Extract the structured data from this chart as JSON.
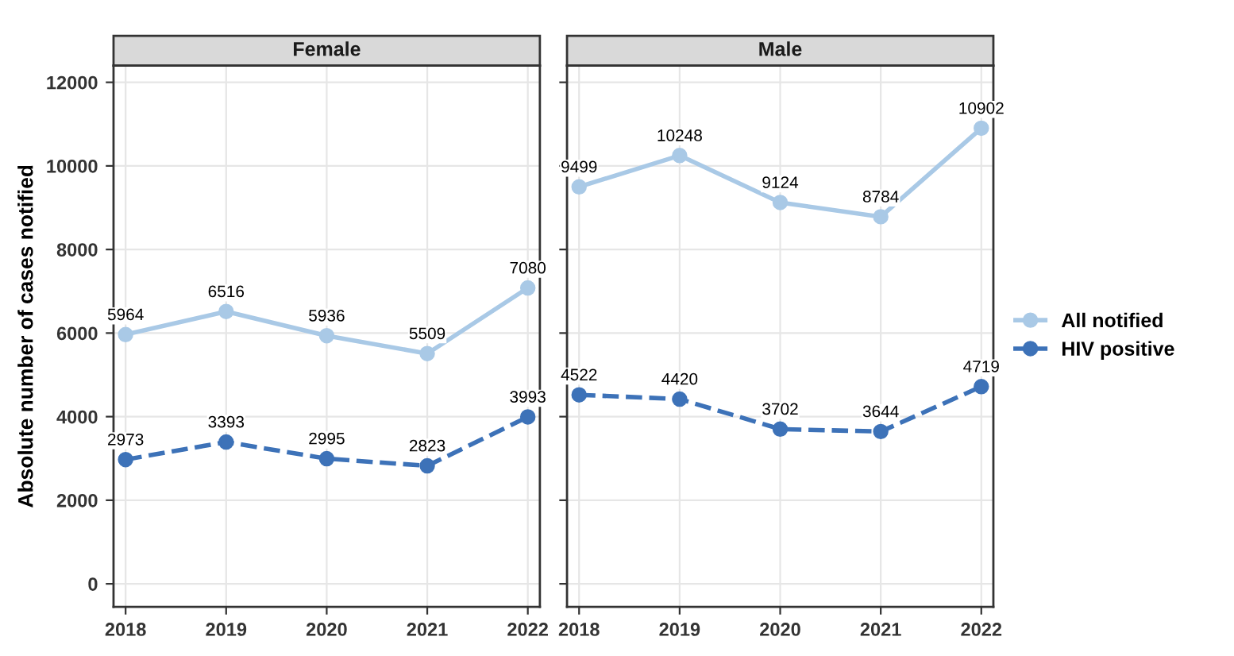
{
  "chart_data": [
    {
      "type": "line",
      "title": "Female",
      "ylabel": "Absolute number of cases notified",
      "categories": [
        "2018",
        "2019",
        "2020",
        "2021",
        "2022"
      ],
      "series": [
        {
          "name": "All notified",
          "color": "#a9c9e6",
          "values": [
            5964,
            6516,
            5936,
            5509,
            7080
          ],
          "line_style": "solid"
        },
        {
          "name": "HIV positive",
          "color": "#3d72b8",
          "values": [
            2973,
            3393,
            2995,
            2823,
            3993
          ],
          "line_style": "dashed"
        }
      ],
      "ylim": [
        -550,
        12400
      ],
      "yticks": [
        0,
        2000,
        4000,
        6000,
        8000,
        10000,
        12000
      ],
      "grid": true,
      "marker": "circle",
      "data_labels": true,
      "legend": "right"
    },
    {
      "type": "line",
      "title": "Male",
      "categories": [
        "2018",
        "2019",
        "2020",
        "2021",
        "2022"
      ],
      "series": [
        {
          "name": "All notified",
          "color": "#a9c9e6",
          "values": [
            9499,
            10248,
            9124,
            8784,
            10902
          ],
          "line_style": "solid"
        },
        {
          "name": "HIV positive",
          "color": "#3d72b8",
          "values": [
            4522,
            4420,
            3702,
            3644,
            4719
          ],
          "line_style": "dashed"
        }
      ],
      "ylim": [
        -550,
        12400
      ],
      "yticks": [
        0,
        2000,
        4000,
        6000,
        8000,
        10000,
        12000
      ],
      "grid": true,
      "marker": "circle",
      "data_labels": true,
      "legend": "right",
      "tick_labels": "x"
    }
  ]
}
